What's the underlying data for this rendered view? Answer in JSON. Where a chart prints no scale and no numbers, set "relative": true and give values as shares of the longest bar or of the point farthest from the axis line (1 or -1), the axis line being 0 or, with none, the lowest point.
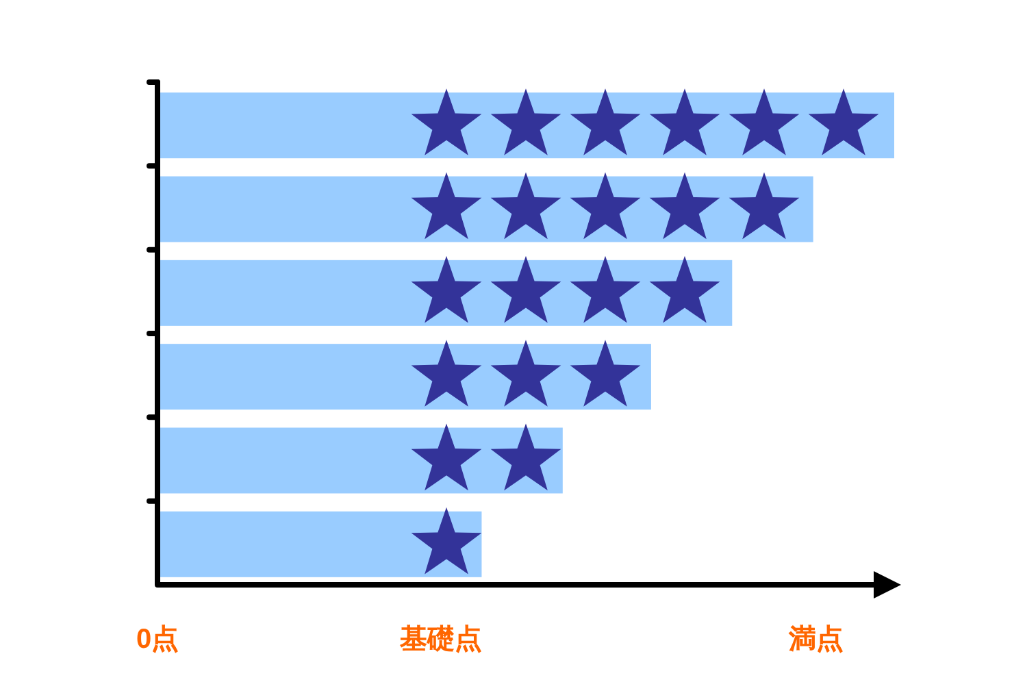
{
  "chart_data": {
    "type": "bar",
    "orientation": "horizontal",
    "relative": true,
    "categories": [
      null,
      null,
      null,
      null,
      null,
      null
    ],
    "values": [
      1,
      0.89,
      0.78,
      0.67,
      0.55,
      0.44
    ],
    "color": "#99ccff",
    "annotations": [
      "0点",
      "基礎点",
      "満点"
    ]
  }
}
